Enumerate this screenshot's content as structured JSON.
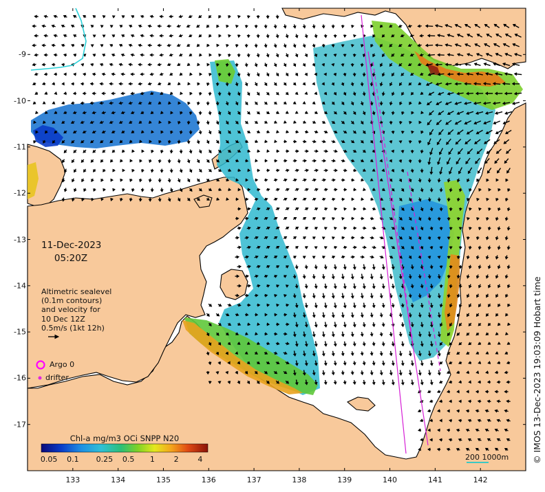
{
  "map": {
    "date": "11-Dec-2023",
    "time": "05:20Z",
    "altimetry_lines": [
      "Altimetric sealevel",
      "(0.1m contours)",
      "and velocity for",
      "10 Dec 12Z",
      "0.5m/s (1kt 12h)"
    ],
    "argo_label": "Argo 0",
    "drifter_label": "drifter",
    "colorbar_title": "Chl-a mg/m3 OCi SNPP N20",
    "colorbar_ticks": [
      "0.05",
      "0.1",
      "0.25",
      "0.5",
      "1",
      "2",
      "4"
    ],
    "colorbar_tick_values": [
      0.05,
      0.1,
      0.25,
      0.5,
      1,
      2,
      4
    ],
    "colorbar_range": [
      0.04,
      5
    ],
    "scale_label": "200  1000m",
    "credit": "© IMOS 13-Dec-2023 19:03:09 Hobart time",
    "lon_ticks": [
      "133",
      "134",
      "135",
      "136",
      "137",
      "138",
      "139",
      "140",
      "141",
      "142"
    ],
    "lat_ticks": [
      "-9",
      "-10",
      "-11",
      "-12",
      "-13",
      "-14",
      "-15",
      "-16",
      "-17"
    ],
    "lon_range": [
      132.0,
      143.0
    ],
    "lat_range": [
      -18.0,
      -8.0
    ],
    "colors": {
      "land": "#f8c99b",
      "coast": "#000000",
      "argo": "#ff00ff",
      "drifter": "#e026e0",
      "scale_bar": "#3cc9c4",
      "bathymetry_contour": "#2ad0d8"
    }
  }
}
